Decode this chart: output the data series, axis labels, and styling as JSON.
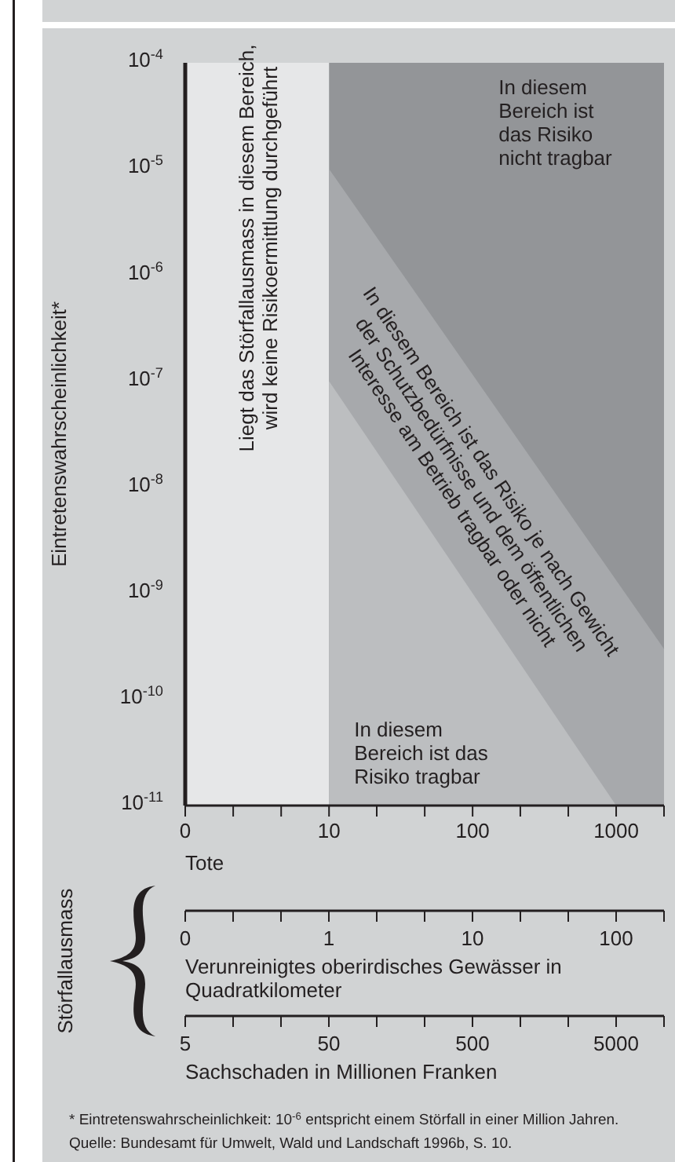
{
  "chart_data": [
    {
      "type": "area",
      "xlabel": "Tote",
      "ylabel": "Eintretenswahrscheinlichkeit*",
      "log": "xy",
      "legend": false,
      "grid": false,
      "xlim": [
        0,
        2154
      ],
      "xticks": [
        0,
        {
          "value": 2.15,
          "label": null
        },
        {
          "value": 4.64,
          "label": null
        },
        10,
        {
          "value": 21.5,
          "label": null
        },
        {
          "value": 46.4,
          "label": null
        },
        100,
        {
          "value": 215,
          "label": null
        },
        {
          "value": 464,
          "label": null
        },
        1000,
        {
          "value": 2154,
          "label": null
        }
      ],
      "ylim": [
        1e-11,
        0.0001
      ],
      "yticks": [
        {
          "value": 1e-11,
          "label": "10$^{-11}$"
        },
        {
          "value": 1e-10,
          "label": "10$^{-10}$"
        },
        {
          "value": 1e-09,
          "label": "10$^{-9}$"
        },
        {
          "value": 1e-08,
          "label": "10$^{-8}$"
        },
        {
          "value": 1e-07,
          "label": "10$^{-7}$"
        },
        {
          "value": 1e-06,
          "label": "10$^{-6}$"
        },
        {
          "value": 1e-05,
          "label": "10$^{-5}$"
        },
        {
          "value": 0.0001,
          "label": "10$^{-4}$"
        }
      ],
      "bands": [
        {
          "axis": "x",
          "from": 10,
          "to": 2154,
          "label": "In diesem Bereich ist das Risiko nicht tragbar",
          "color": "#939598"
        }
      ],
      "series": [
        {
          "name": "In diesem Bereich ist das Risiko je nach Gewicht der Schutzbedürfnisse und dem öffentlichen Interesse am Betrieb tragbar oder nicht",
          "color": "#a7a9ac",
          "x": [
            10,
            2154
          ],
          "values": [
            1e-05,
            3e-10
          ]
        },
        {
          "name": "In diesem Bereich ist das Risiko tragbar",
          "color": "#bcbec0",
          "x": [
            10,
            1000
          ],
          "values": [
            1e-07,
            1e-11
          ]
        }
      ],
      "annotations": [
        "Störfallausmass",
        "* Eintretenswahrscheinlichkeit: 10$^{-6}$ entspricht einem Störfall in einer Million Jahren.",
        "Quelle: Bundesamt für Umwelt, Wald und Landschaft 1996b, S. 10.",
        "Liegt das Störfallausmass in diesem Bereich, wird keine Risikoermittlung durchgeführt"
      ]
    },
    {
      "type": "other",
      "xlabel": "Verunreinigtes oberirdisches Gewässer in Quadratkilometer",
      "annotations": [
        "0",
        "1",
        "10",
        "100"
      ]
    },
    {
      "type": "other",
      "xlabel": "Sachschaden in Millionen Franken",
      "annotations": [
        "5",
        "50",
        "500",
        "5000"
      ]
    }
  ]
}
